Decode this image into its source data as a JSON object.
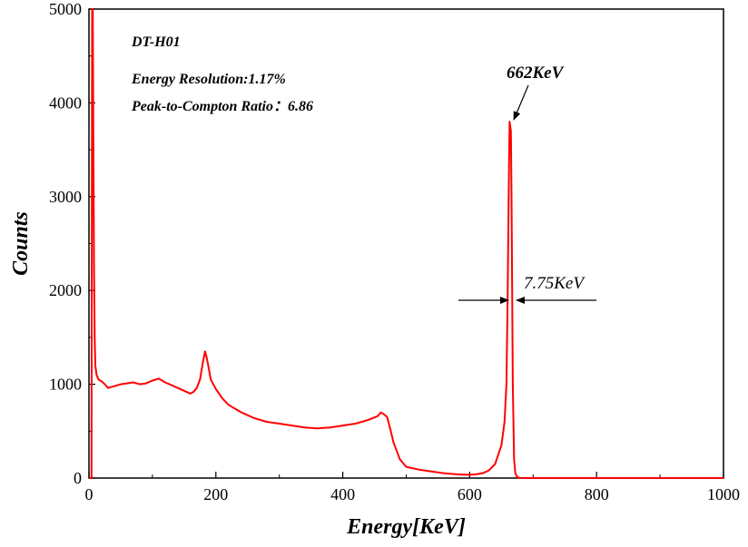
{
  "chart_data": {
    "type": "line",
    "title": "",
    "xlabel": "Energy[KeV]",
    "ylabel": "Counts",
    "xlim": [
      0,
      1000
    ],
    "ylim": [
      0,
      5000
    ],
    "x_ticks": [
      0,
      200,
      400,
      600,
      800,
      1000
    ],
    "y_ticks": [
      0,
      1000,
      2000,
      3000,
      4000,
      5000
    ],
    "grid": false,
    "legend": "none",
    "line_color": "#ff0000",
    "series": [
      {
        "x": [
          0,
          2,
          4,
          5,
          6,
          7,
          8,
          9,
          10,
          12,
          15,
          20,
          25,
          30,
          40,
          50,
          60,
          70,
          80,
          90,
          100,
          110,
          120,
          130,
          140,
          150,
          160,
          165,
          170,
          175,
          180,
          183,
          185,
          188,
          192,
          200,
          210,
          220,
          240,
          260,
          280,
          300,
          320,
          340,
          360,
          380,
          400,
          420,
          440,
          455,
          460,
          465,
          470,
          475,
          480,
          490,
          500,
          520,
          540,
          560,
          580,
          600,
          610,
          620,
          630,
          640,
          645,
          650,
          655,
          658,
          660,
          662,
          663,
          665,
          666,
          667,
          668,
          670,
          672,
          675,
          680,
          700,
          800,
          900,
          1000
        ],
        "y": [
          0,
          0,
          0,
          5000,
          5000,
          3500,
          2200,
          1500,
          1200,
          1100,
          1050,
          1030,
          1000,
          960,
          980,
          1000,
          1010,
          1020,
          1000,
          1010,
          1040,
          1060,
          1020,
          990,
          960,
          930,
          900,
          920,
          960,
          1050,
          1250,
          1350,
          1300,
          1200,
          1050,
          950,
          850,
          780,
          700,
          640,
          600,
          580,
          560,
          540,
          530,
          540,
          560,
          580,
          620,
          660,
          700,
          680,
          650,
          520,
          380,
          200,
          120,
          90,
          70,
          50,
          40,
          35,
          40,
          50,
          80,
          150,
          250,
          350,
          600,
          1000,
          2000,
          3300,
          3800,
          3700,
          3000,
          2000,
          1000,
          200,
          50,
          10,
          0,
          0,
          0,
          0,
          0
        ]
      }
    ],
    "annotations": {
      "info_lines": [
        "DT-H01",
        "Energy Resolution:1.17%",
        "Peak-to-Compton Ratio：6.86"
      ],
      "peak_label": "662KeV",
      "fwhm_label": "7.75KeV"
    }
  }
}
